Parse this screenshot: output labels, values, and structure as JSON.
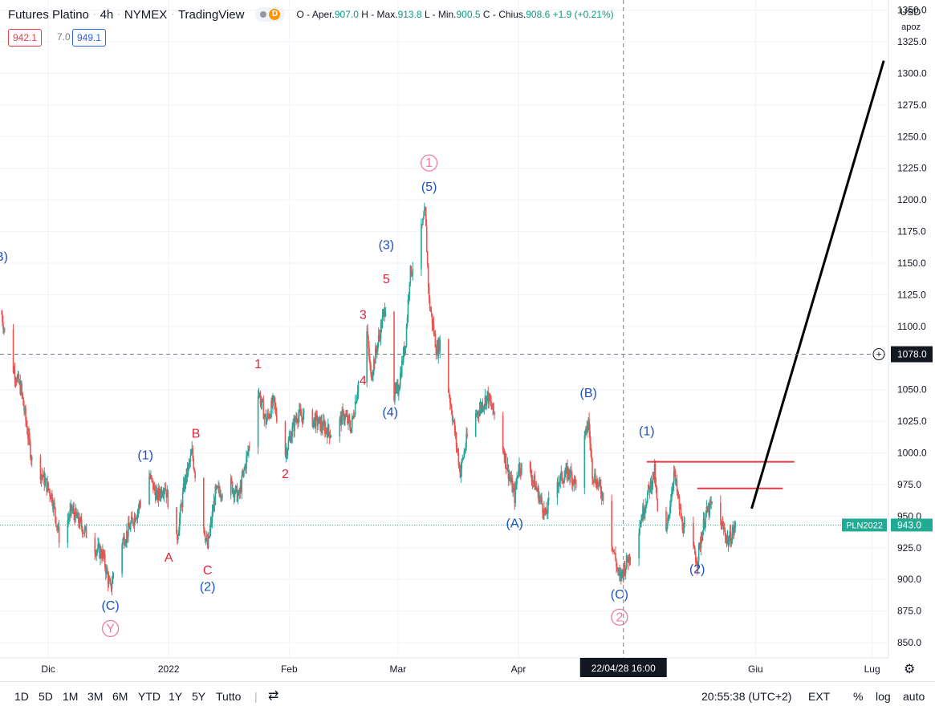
{
  "header": {
    "symbol": "Futures Platino",
    "interval": "4h",
    "exchange": "NYMEX",
    "source": "TradingView",
    "badge_d": "D",
    "ohlc": {
      "o_label": "O - Aper.",
      "o": "907.0",
      "h_label": "H - Max.",
      "h": "913.8",
      "l_label": "L - Min.",
      "l": "900.5",
      "c_label": "C - Chius.",
      "c": "908.6",
      "change": "+1.9 (+0.21%)"
    }
  },
  "trade_boxes": {
    "sell": "942.1",
    "spread": "7.0",
    "buy": "949.1"
  },
  "price_scale": {
    "currency": "USD",
    "mode": "apoz"
  },
  "toolbar": {
    "ranges": [
      "1D",
      "5D",
      "1M",
      "3M",
      "6M",
      "YTD",
      "1Y",
      "5Y",
      "Tutto"
    ],
    "clock": "20:55:38 (UTC+2)",
    "ext": "EXT",
    "percent": "%",
    "log": "log",
    "auto": "auto"
  },
  "colors": {
    "up": "#26a69a",
    "down": "#ef5350",
    "wave_blue": "#1e4fc2",
    "wave_red": "#e0243c",
    "wave_pink": "#f07ca0",
    "resistance": "#e53945",
    "projection": "#000000",
    "last_price": "#22ab94"
  },
  "chart_data": {
    "type": "candlestick",
    "title": "Futures Platino · 4h · NYMEX",
    "y_axis": {
      "ylim": [
        838,
        1358
      ],
      "ticks": [
        850,
        875,
        900,
        925,
        950,
        975,
        1000,
        1025,
        1050,
        1075,
        1100,
        1125,
        1150,
        1175,
        1200,
        1225,
        1250,
        1275,
        1300,
        1325,
        1350
      ],
      "tick_labels": [
        "850.0",
        "875.0",
        "900.0",
        "925.0",
        "950.0",
        "975.0",
        "1000.0",
        "1025.0",
        "1050.0",
        "1075.0",
        "1100.0",
        "1125.0",
        "1150.0",
        "1175.0",
        "1200.0",
        "1225.0",
        "1250.0",
        "1275.0",
        "1300.0",
        "1325.0",
        "1350.0"
      ]
    },
    "x_axis": {
      "labels": [
        {
          "label": "Dic",
          "date": "2021-12-01"
        },
        {
          "label": "2022",
          "date": "2022-01-01"
        },
        {
          "label": "Feb",
          "date": "2022-02-01"
        },
        {
          "label": "Mar",
          "date": "2022-03-01"
        },
        {
          "label": "Apr",
          "date": "2022-04-01"
        },
        {
          "label": "Giu",
          "date": "2022-06-01"
        },
        {
          "label": "Lug",
          "date": "2022-07-01"
        }
      ],
      "crosshair_label": "22/04/28  16:00"
    },
    "crosshair": {
      "date": "2022-04-28",
      "price": 1078.0,
      "price_label": "1078.0"
    },
    "last_price": {
      "symbol": "PLN2022",
      "value": 943.0,
      "label": "943.0"
    },
    "price_path": [
      {
        "date": "2021-11-19",
        "close": 1110
      },
      {
        "date": "2021-11-21",
        "close": 1075
      },
      {
        "date": "2021-11-24",
        "close": 1050
      },
      {
        "date": "2021-11-26",
        "close": 1010
      },
      {
        "date": "2021-11-28",
        "close": 970
      },
      {
        "date": "2021-11-29",
        "close": 985
      },
      {
        "date": "2021-12-02",
        "close": 965
      },
      {
        "date": "2021-12-04",
        "close": 930
      },
      {
        "date": "2021-12-07",
        "close": 955
      },
      {
        "date": "2021-12-10",
        "close": 940
      },
      {
        "date": "2021-12-13",
        "close": 925
      },
      {
        "date": "2021-12-15",
        "close": 920
      },
      {
        "date": "2021-12-17",
        "close": 892
      },
      {
        "date": "2021-12-19",
        "close": 925
      },
      {
        "date": "2021-12-21",
        "close": 935
      },
      {
        "date": "2021-12-24",
        "close": 955
      },
      {
        "date": "2021-12-27",
        "close": 982
      },
      {
        "date": "2021-12-29",
        "close": 965
      },
      {
        "date": "2021-12-31",
        "close": 975
      },
      {
        "date": "2022-01-01",
        "close": 960
      },
      {
        "date": "2022-01-03",
        "close": 930
      },
      {
        "date": "2022-01-05",
        "close": 975
      },
      {
        "date": "2022-01-07",
        "close": 1000
      },
      {
        "date": "2022-01-09",
        "close": 960
      },
      {
        "date": "2022-01-11",
        "close": 925
      },
      {
        "date": "2022-01-13",
        "close": 968
      },
      {
        "date": "2022-01-17",
        "close": 975
      },
      {
        "date": "2022-01-19",
        "close": 965
      },
      {
        "date": "2022-01-22",
        "close": 1010
      },
      {
        "date": "2022-01-24",
        "close": 1050
      },
      {
        "date": "2022-01-26",
        "close": 1025
      },
      {
        "date": "2022-01-28",
        "close": 1040
      },
      {
        "date": "2022-01-31",
        "close": 1000
      },
      {
        "date": "2022-02-03",
        "close": 1030
      },
      {
        "date": "2022-02-08",
        "close": 1025
      },
      {
        "date": "2022-02-12",
        "close": 1015
      },
      {
        "date": "2022-02-15",
        "close": 1030
      },
      {
        "date": "2022-02-17",
        "close": 1020
      },
      {
        "date": "2022-02-19",
        "close": 1060
      },
      {
        "date": "2022-02-21",
        "close": 1095
      },
      {
        "date": "2022-02-22",
        "close": 1060
      },
      {
        "date": "2022-02-24",
        "close": 1090
      },
      {
        "date": "2022-02-26",
        "close": 1120
      },
      {
        "date": "2022-02-27",
        "close": 1040
      },
      {
        "date": "2022-03-01",
        "close": 1050
      },
      {
        "date": "2022-03-03",
        "close": 1090
      },
      {
        "date": "2022-03-04",
        "close": 1140
      },
      {
        "date": "2022-03-06",
        "close": 1160
      },
      {
        "date": "2022-03-08",
        "close": 1190
      },
      {
        "date": "2022-03-09",
        "close": 1120
      },
      {
        "date": "2022-03-11",
        "close": 1080
      },
      {
        "date": "2022-03-12",
        "close": 1090
      },
      {
        "date": "2022-03-14",
        "close": 1050
      },
      {
        "date": "2022-03-15",
        "close": 1030
      },
      {
        "date": "2022-03-17",
        "close": 985
      },
      {
        "date": "2022-03-19",
        "close": 1015
      },
      {
        "date": "2022-03-21",
        "close": 1030
      },
      {
        "date": "2022-03-24",
        "close": 1045
      },
      {
        "date": "2022-03-27",
        "close": 1020
      },
      {
        "date": "2022-03-29",
        "close": 990
      },
      {
        "date": "2022-03-31",
        "close": 965
      },
      {
        "date": "2022-04-01",
        "close": 990
      },
      {
        "date": "2022-04-04",
        "close": 985
      },
      {
        "date": "2022-04-07",
        "close": 960
      },
      {
        "date": "2022-04-08",
        "close": 950
      },
      {
        "date": "2022-04-10",
        "close": 975
      },
      {
        "date": "2022-04-14",
        "close": 985
      },
      {
        "date": "2022-04-16",
        "close": 975
      },
      {
        "date": "2022-04-18",
        "close": 1010
      },
      {
        "date": "2022-04-19",
        "close": 1025
      },
      {
        "date": "2022-04-20",
        "close": 985
      },
      {
        "date": "2022-04-23",
        "close": 965
      },
      {
        "date": "2022-04-25",
        "close": 930
      },
      {
        "date": "2022-04-27",
        "close": 900
      },
      {
        "date": "2022-04-29",
        "close": 915
      },
      {
        "date": "2022-05-01",
        "close": 930
      },
      {
        "date": "2022-05-04",
        "close": 965
      },
      {
        "date": "2022-05-06",
        "close": 985
      },
      {
        "date": "2022-05-07",
        "close": 945
      },
      {
        "date": "2022-05-09",
        "close": 935
      },
      {
        "date": "2022-05-11",
        "close": 985
      },
      {
        "date": "2022-05-13",
        "close": 945
      },
      {
        "date": "2022-05-15",
        "close": 930
      },
      {
        "date": "2022-05-17",
        "close": 915
      },
      {
        "date": "2022-05-19",
        "close": 950
      },
      {
        "date": "2022-05-21",
        "close": 960
      },
      {
        "date": "2022-05-23",
        "close": 945
      },
      {
        "date": "2022-05-25",
        "close": 930
      },
      {
        "date": "2022-05-27",
        "close": 943
      }
    ],
    "wave_labels": [
      {
        "text": "B)",
        "date": "2021-11-19",
        "price": 1152,
        "color": "blue"
      },
      {
        "text": "(C)",
        "date": "2021-12-17",
        "price": 876,
        "color": "blue"
      },
      {
        "text": "Y",
        "date": "2021-12-17",
        "price": 858,
        "color": "pink",
        "circled": true
      },
      {
        "text": "(1)",
        "date": "2021-12-26",
        "price": 995,
        "color": "blue"
      },
      {
        "text": "A",
        "date": "2022-01-01",
        "price": 914,
        "color": "red"
      },
      {
        "text": "B",
        "date": "2022-01-08",
        "price": 1012,
        "color": "red"
      },
      {
        "text": "C",
        "date": "2022-01-11",
        "price": 904,
        "color": "red"
      },
      {
        "text": "(2)",
        "date": "2022-01-11",
        "price": 891,
        "color": "blue"
      },
      {
        "text": "1",
        "date": "2022-01-24",
        "price": 1067,
        "color": "red"
      },
      {
        "text": "2",
        "date": "2022-01-31",
        "price": 980,
        "color": "red"
      },
      {
        "text": "3",
        "date": "2022-02-20",
        "price": 1106,
        "color": "red"
      },
      {
        "text": "4",
        "date": "2022-02-20",
        "price": 1054,
        "color": "red"
      },
      {
        "text": "5",
        "date": "2022-02-26",
        "price": 1134,
        "color": "red"
      },
      {
        "text": "(3)",
        "date": "2022-02-26",
        "price": 1161,
        "color": "blue"
      },
      {
        "text": "(4)",
        "date": "2022-02-27",
        "price": 1029,
        "color": "blue"
      },
      {
        "text": "(5)",
        "date": "2022-03-09",
        "price": 1207,
        "color": "blue"
      },
      {
        "text": "1",
        "date": "2022-03-09",
        "price": 1226,
        "color": "pink",
        "circled": true
      },
      {
        "text": "(A)",
        "date": "2022-03-31",
        "price": 941,
        "color": "blue"
      },
      {
        "text": "(B)",
        "date": "2022-04-19",
        "price": 1044,
        "color": "blue"
      },
      {
        "text": "(C)",
        "date": "2022-04-27",
        "price": 885,
        "color": "blue"
      },
      {
        "text": "2",
        "date": "2022-04-27",
        "price": 867,
        "color": "pink",
        "circled": true
      },
      {
        "text": "(1)",
        "date": "2022-05-04",
        "price": 1014,
        "color": "blue"
      },
      {
        "text": "(2)",
        "date": "2022-05-17",
        "price": 905,
        "color": "blue"
      }
    ],
    "annotations": {
      "horizontal_lines": [
        {
          "from": "2022-05-04",
          "to": "2022-06-11",
          "price": 993,
          "color": "red"
        },
        {
          "from": "2022-05-17",
          "to": "2022-06-08",
          "price": 972,
          "color": "red"
        }
      ],
      "projection_line": {
        "from": {
          "date": "2022-05-31",
          "price": 956
        },
        "to": {
          "date": "2022-07-04",
          "price": 1310
        },
        "color": "black"
      }
    }
  }
}
